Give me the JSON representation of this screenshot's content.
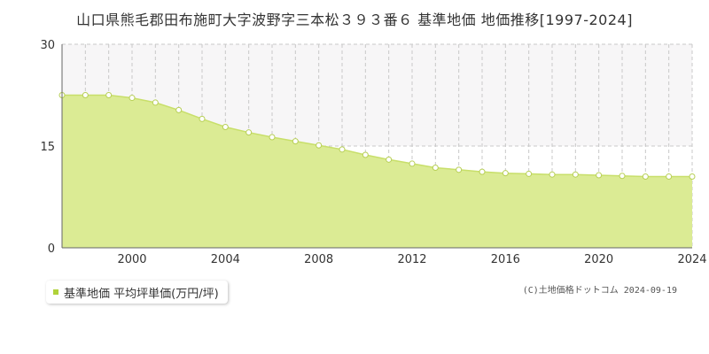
{
  "title": "山口県熊毛郡田布施町大字波野字三本松３９３番６ 基準地価 地価推移[1997-2024]",
  "chart_data": {
    "type": "area",
    "x": [
      1997,
      1998,
      1999,
      2000,
      2001,
      2002,
      2003,
      2004,
      2005,
      2006,
      2007,
      2008,
      2009,
      2010,
      2011,
      2012,
      2013,
      2014,
      2015,
      2016,
      2017,
      2018,
      2019,
      2020,
      2021,
      2022,
      2023,
      2024
    ],
    "series": [
      {
        "name": "基準地価 平均坪単価(万円/坪)",
        "values": [
          22.5,
          22.5,
          22.5,
          22.1,
          21.4,
          20.3,
          19.0,
          17.8,
          17.0,
          16.3,
          15.7,
          15.1,
          14.5,
          13.7,
          13.0,
          12.4,
          11.8,
          11.5,
          11.2,
          11.0,
          10.9,
          10.8,
          10.8,
          10.7,
          10.6,
          10.5,
          10.5,
          10.5
        ]
      }
    ],
    "xlim": [
      1997,
      2024
    ],
    "ylim": [
      0,
      30
    ],
    "y_ticks": [
      "0",
      "15",
      "30"
    ],
    "x_ticks": [
      "2000",
      "2004",
      "2008",
      "2012",
      "2016",
      "2020",
      "2024"
    ],
    "grid": true
  },
  "legend": {
    "label": "基準地価 平均坪単価(万円/坪)"
  },
  "copyright": "(C)土地価格ドットコム 2024-09-19",
  "colors": {
    "area_fill": "#dbeb94",
    "line": "#c8df6a",
    "marker_fill": "#ffffff",
    "marker_stroke": "#b7cf55",
    "grid": "#c8c8c8",
    "upper_band": "#f7f6f7",
    "axis": "#666666",
    "legend_swatch": "#b0d23a"
  }
}
